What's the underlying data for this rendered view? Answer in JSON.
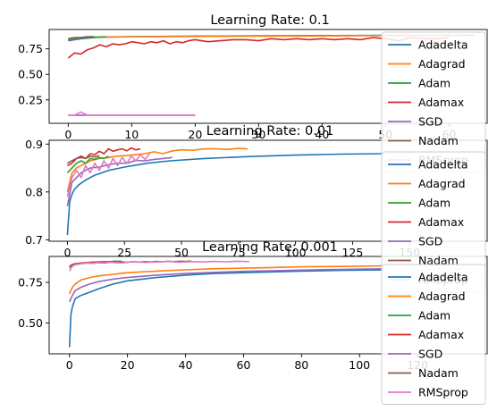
{
  "chart_data": [
    {
      "type": "line",
      "title": "Learning Rate: 0.1",
      "xlabel": "",
      "ylabel": "",
      "xlim": [
        -3,
        66
      ],
      "ylim": [
        0.02,
        0.94
      ],
      "xticks": [
        0,
        10,
        20,
        30,
        40,
        50,
        60
      ],
      "yticks": [
        0.25,
        0.5,
        0.75
      ],
      "ytick_labels": [
        "0.25",
        "0.50",
        "0.75"
      ],
      "legend": "right",
      "series": [
        {
          "name": "Adadelta",
          "color": "#1f77b4",
          "x": [
            0,
            2,
            5,
            10,
            20,
            30,
            40,
            50,
            60,
            64
          ],
          "y": [
            0.83,
            0.85,
            0.865,
            0.87,
            0.875,
            0.878,
            0.88,
            0.882,
            0.885,
            0.886
          ]
        },
        {
          "name": "Adagrad",
          "color": "#ff7f0e",
          "x": [
            0,
            2,
            5,
            10,
            20,
            30,
            40,
            50,
            60,
            64
          ],
          "y": [
            0.84,
            0.86,
            0.865,
            0.868,
            0.872,
            0.875,
            0.877,
            0.88,
            0.882,
            0.883
          ]
        },
        {
          "name": "Adam",
          "color": "#2ca02c",
          "x": [
            0,
            1,
            2,
            3,
            4,
            5,
            6
          ],
          "y": [
            0.84,
            0.855,
            0.86,
            0.86,
            0.865,
            0.865,
            0.87
          ]
        },
        {
          "name": "Adamax",
          "color": "#d62728",
          "x": [
            0,
            1,
            2,
            3,
            4,
            5,
            6,
            7,
            8,
            9,
            10,
            11,
            12,
            13,
            14,
            15,
            16,
            17,
            18,
            19,
            20,
            22,
            24,
            26,
            28,
            30,
            32,
            34,
            36,
            38,
            40,
            42,
            44,
            46,
            48,
            50,
            52,
            54,
            56,
            58,
            60
          ],
          "y": [
            0.66,
            0.71,
            0.7,
            0.74,
            0.76,
            0.79,
            0.77,
            0.8,
            0.79,
            0.8,
            0.82,
            0.81,
            0.8,
            0.82,
            0.81,
            0.83,
            0.8,
            0.82,
            0.81,
            0.83,
            0.84,
            0.82,
            0.83,
            0.84,
            0.84,
            0.83,
            0.85,
            0.84,
            0.85,
            0.84,
            0.85,
            0.84,
            0.85,
            0.84,
            0.86,
            0.85,
            0.83,
            0.86,
            0.85,
            0.85,
            0.86
          ]
        },
        {
          "name": "SGD",
          "color": "#9467bd",
          "x": [
            0,
            5,
            10,
            15,
            20
          ],
          "y": [
            0.1,
            0.1,
            0.1,
            0.1,
            0.1
          ]
        },
        {
          "name": "Nadam",
          "color": "#8c564b",
          "x": [
            0,
            1,
            2,
            3,
            4
          ],
          "y": [
            0.85,
            0.86,
            0.86,
            0.87,
            0.87
          ]
        },
        {
          "name": "RMSprop",
          "color": "#e377c2",
          "x": [
            0,
            1,
            2,
            3,
            5,
            10,
            15,
            20
          ],
          "y": [
            0.1,
            0.1,
            0.13,
            0.1,
            0.1,
            0.1,
            0.1,
            0.1
          ]
        }
      ]
    },
    {
      "type": "line",
      "title": "Learning Rate: 0.01",
      "xlabel": "",
      "ylabel": "",
      "xlim": [
        -8,
        184
      ],
      "ylim": [
        0.697,
        0.908
      ],
      "xticks": [
        0,
        25,
        50,
        75,
        100,
        125,
        150
      ],
      "yticks": [
        0.7,
        0.8,
        0.9
      ],
      "ytick_labels": [
        "0.7",
        "0.8",
        "0.9"
      ],
      "legend": "right",
      "series": [
        {
          "name": "Adadelta",
          "color": "#1f77b4",
          "x": [
            0,
            1,
            2,
            3,
            5,
            8,
            12,
            18,
            25,
            35,
            45,
            60,
            80,
            100,
            120,
            140,
            160,
            175
          ],
          "y": [
            0.71,
            0.78,
            0.795,
            0.805,
            0.815,
            0.825,
            0.835,
            0.845,
            0.852,
            0.86,
            0.865,
            0.87,
            0.874,
            0.877,
            0.879,
            0.88,
            0.882,
            0.883
          ]
        },
        {
          "name": "Adagrad",
          "color": "#ff7f0e",
          "x": [
            0,
            2,
            4,
            6,
            8,
            10,
            14,
            18,
            22,
            26,
            30,
            34,
            38,
            42,
            46,
            50,
            55,
            60,
            65,
            70,
            75,
            79
          ],
          "y": [
            0.8,
            0.84,
            0.85,
            0.855,
            0.86,
            0.865,
            0.87,
            0.872,
            0.875,
            0.876,
            0.878,
            0.88,
            0.884,
            0.88,
            0.886,
            0.888,
            0.887,
            0.89,
            0.89,
            0.889,
            0.891,
            0.89
          ]
        },
        {
          "name": "Adam",
          "color": "#2ca02c",
          "x": [
            0,
            2,
            4,
            6,
            8,
            10,
            12,
            14,
            16,
            18
          ],
          "y": [
            0.84,
            0.85,
            0.86,
            0.865,
            0.86,
            0.87,
            0.868,
            0.872,
            0.87,
            0.875
          ]
        },
        {
          "name": "Adamax",
          "color": "#d62728",
          "x": [
            0,
            2,
            4,
            6,
            8,
            10,
            12,
            14,
            16,
            18,
            20,
            22,
            24,
            26,
            28,
            30,
            32
          ],
          "y": [
            0.855,
            0.86,
            0.87,
            0.875,
            0.87,
            0.88,
            0.878,
            0.885,
            0.88,
            0.89,
            0.885,
            0.888,
            0.89,
            0.886,
            0.892,
            0.888,
            0.89
          ]
        },
        {
          "name": "SGD",
          "color": "#9467bd",
          "x": [
            0,
            2,
            4,
            6,
            8,
            10,
            14,
            18,
            22,
            26,
            30,
            34,
            38,
            42,
            46
          ],
          "y": [
            0.77,
            0.82,
            0.83,
            0.84,
            0.845,
            0.85,
            0.852,
            0.857,
            0.86,
            0.86,
            0.866,
            0.865,
            0.868,
            0.87,
            0.872
          ]
        },
        {
          "name": "Nadam",
          "color": "#8c564b",
          "x": [
            0,
            2,
            4,
            6,
            8,
            10,
            12,
            14
          ],
          "y": [
            0.86,
            0.865,
            0.87,
            0.872,
            0.87,
            0.875,
            0.873,
            0.876
          ]
        },
        {
          "name": "RMSprop",
          "color": "#e377c2",
          "x": [
            0,
            2,
            4,
            6,
            8,
            10,
            12,
            14,
            16,
            18,
            20,
            22,
            24,
            26,
            28,
            30,
            32,
            34,
            36
          ],
          "y": [
            0.79,
            0.83,
            0.845,
            0.83,
            0.855,
            0.84,
            0.86,
            0.845,
            0.865,
            0.85,
            0.87,
            0.855,
            0.872,
            0.86,
            0.875,
            0.865,
            0.878,
            0.868,
            0.88
          ]
        }
      ]
    },
    {
      "type": "line",
      "title": "Learning Rate: 0.001",
      "xlabel": "",
      "ylabel": "",
      "xlim": [
        -7,
        144
      ],
      "ylim": [
        0.31,
        0.91
      ],
      "xticks": [
        0,
        20,
        40,
        60,
        80,
        100,
        120
      ],
      "yticks": [
        0.5,
        0.75
      ],
      "ytick_labels": [
        "0.50",
        "0.75"
      ],
      "legend": "right",
      "series": [
        {
          "name": "Adadelta",
          "color": "#1f77b4",
          "x": [
            0,
            0.5,
            1,
            2,
            4,
            7,
            10,
            15,
            20,
            30,
            40,
            50,
            60,
            70,
            80,
            90,
            100,
            110,
            120,
            137
          ],
          "y": [
            0.35,
            0.55,
            0.6,
            0.65,
            0.67,
            0.69,
            0.71,
            0.74,
            0.76,
            0.78,
            0.795,
            0.805,
            0.81,
            0.815,
            0.82,
            0.823,
            0.826,
            0.828,
            0.83,
            0.832
          ]
        },
        {
          "name": "Adagrad",
          "color": "#ff7f0e",
          "x": [
            0,
            1,
            2,
            4,
            7,
            10,
            15,
            20,
            30,
            40,
            50,
            60,
            70,
            80,
            90,
            100,
            110,
            120,
            137
          ],
          "y": [
            0.68,
            0.72,
            0.74,
            0.765,
            0.78,
            0.79,
            0.8,
            0.81,
            0.82,
            0.828,
            0.834,
            0.838,
            0.842,
            0.846,
            0.848,
            0.85,
            0.852,
            0.854,
            0.856
          ]
        },
        {
          "name": "Adam",
          "color": "#2ca02c",
          "x": [
            0,
            1,
            2,
            4,
            6,
            8,
            10,
            12,
            14,
            16,
            18
          ],
          "y": [
            0.84,
            0.86,
            0.865,
            0.87,
            0.872,
            0.875,
            0.876,
            0.878,
            0.878,
            0.88,
            0.88
          ]
        },
        {
          "name": "Adamax",
          "color": "#d62728",
          "x": [
            0,
            1,
            2,
            4,
            6,
            8,
            10,
            12,
            14,
            16
          ],
          "y": [
            0.85,
            0.86,
            0.865,
            0.868,
            0.872,
            0.874,
            0.876,
            0.877,
            0.878,
            0.879
          ]
        },
        {
          "name": "SGD",
          "color": "#9467bd",
          "x": [
            0,
            1,
            2,
            4,
            7,
            10,
            15,
            20,
            30,
            40,
            50,
            60,
            70,
            80,
            90,
            100,
            110,
            120,
            137
          ],
          "y": [
            0.63,
            0.67,
            0.7,
            0.72,
            0.74,
            0.755,
            0.77,
            0.78,
            0.795,
            0.805,
            0.812,
            0.818,
            0.822,
            0.826,
            0.829,
            0.832,
            0.834,
            0.836,
            0.838
          ]
        },
        {
          "name": "Nadam",
          "color": "#8c564b",
          "x": [
            0,
            2,
            4,
            6,
            8,
            10,
            12,
            14,
            16,
            18,
            20,
            22,
            24,
            26,
            28,
            30,
            32,
            34,
            36,
            38,
            40,
            42
          ],
          "y": [
            0.85,
            0.86,
            0.865,
            0.87,
            0.868,
            0.872,
            0.87,
            0.875,
            0.872,
            0.876,
            0.874,
            0.878,
            0.875,
            0.878,
            0.876,
            0.879,
            0.877,
            0.88,
            0.878,
            0.88,
            0.879,
            0.881
          ]
        },
        {
          "name": "RMSprop",
          "color": "#e377c2",
          "x": [
            0,
            1,
            2,
            4,
            6,
            8,
            10,
            14,
            18,
            22,
            26,
            30,
            34,
            38,
            42,
            46,
            50,
            54,
            58,
            62
          ],
          "y": [
            0.82,
            0.85,
            0.86,
            0.865,
            0.87,
            0.868,
            0.872,
            0.875,
            0.87,
            0.878,
            0.873,
            0.876,
            0.879,
            0.874,
            0.878,
            0.876,
            0.879,
            0.877,
            0.88,
            0.878
          ]
        }
      ]
    }
  ]
}
